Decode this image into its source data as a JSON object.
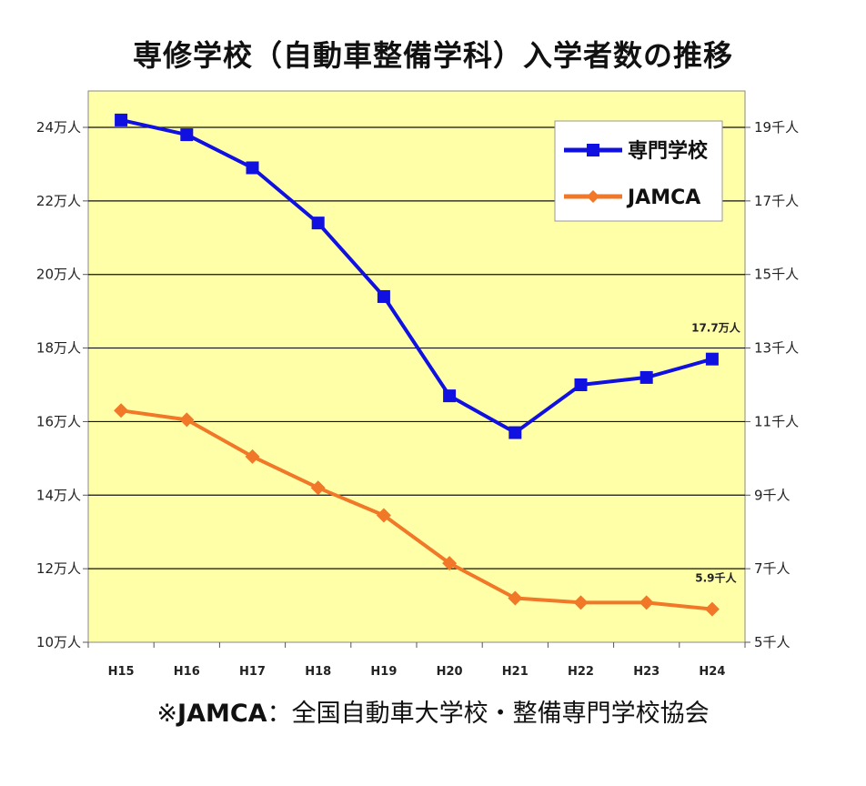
{
  "chart_data": {
    "type": "line",
    "title": "専修学校（自動車整備学科）入学者数の推移",
    "categories": [
      "H15",
      "H16",
      "H17",
      "H18",
      "H19",
      "H20",
      "H21",
      "H22",
      "H23",
      "H24"
    ],
    "y_left": {
      "range": [
        10,
        25
      ],
      "ticks": [
        10,
        12,
        14,
        16,
        18,
        20,
        22,
        24
      ],
      "tick_labels": [
        "10万人",
        "12万人",
        "14万人",
        "16万人",
        "18万人",
        "20万人",
        "22万人",
        "24万人"
      ]
    },
    "y_right": {
      "range": [
        5,
        19.5
      ],
      "ticks": [
        5,
        7,
        9,
        11,
        13,
        15,
        17,
        19
      ],
      "tick_labels": [
        "5千人",
        "7千人",
        "9千人",
        "11千人",
        "13千人",
        "15千人",
        "17千人",
        "19千人"
      ]
    },
    "series": [
      {
        "name": "専門学校",
        "axis": "left",
        "color": "#1010e0",
        "marker": "square",
        "values": [
          24.2,
          23.8,
          22.9,
          21.4,
          19.4,
          16.7,
          15.7,
          17.0,
          17.2,
          17.7
        ]
      },
      {
        "name": "JAMCA",
        "axis": "right",
        "color": "#f07828",
        "marker": "diamond",
        "values": [
          11.3,
          11.05,
          10.05,
          9.2,
          8.45,
          7.15,
          6.2,
          6.08,
          6.08,
          5.9
        ]
      }
    ],
    "annotations": [
      {
        "series": 0,
        "index": 9,
        "text": "17.7万人"
      },
      {
        "series": 1,
        "index": 9,
        "text": "5.9千人"
      }
    ],
    "grid": true,
    "background": "#ffffa8",
    "legend_position": "top-right"
  },
  "footnote": {
    "prefix": "※",
    "bold": "JAMCA",
    "rest": "：全国自動車大学校・整備専門学校協会"
  }
}
